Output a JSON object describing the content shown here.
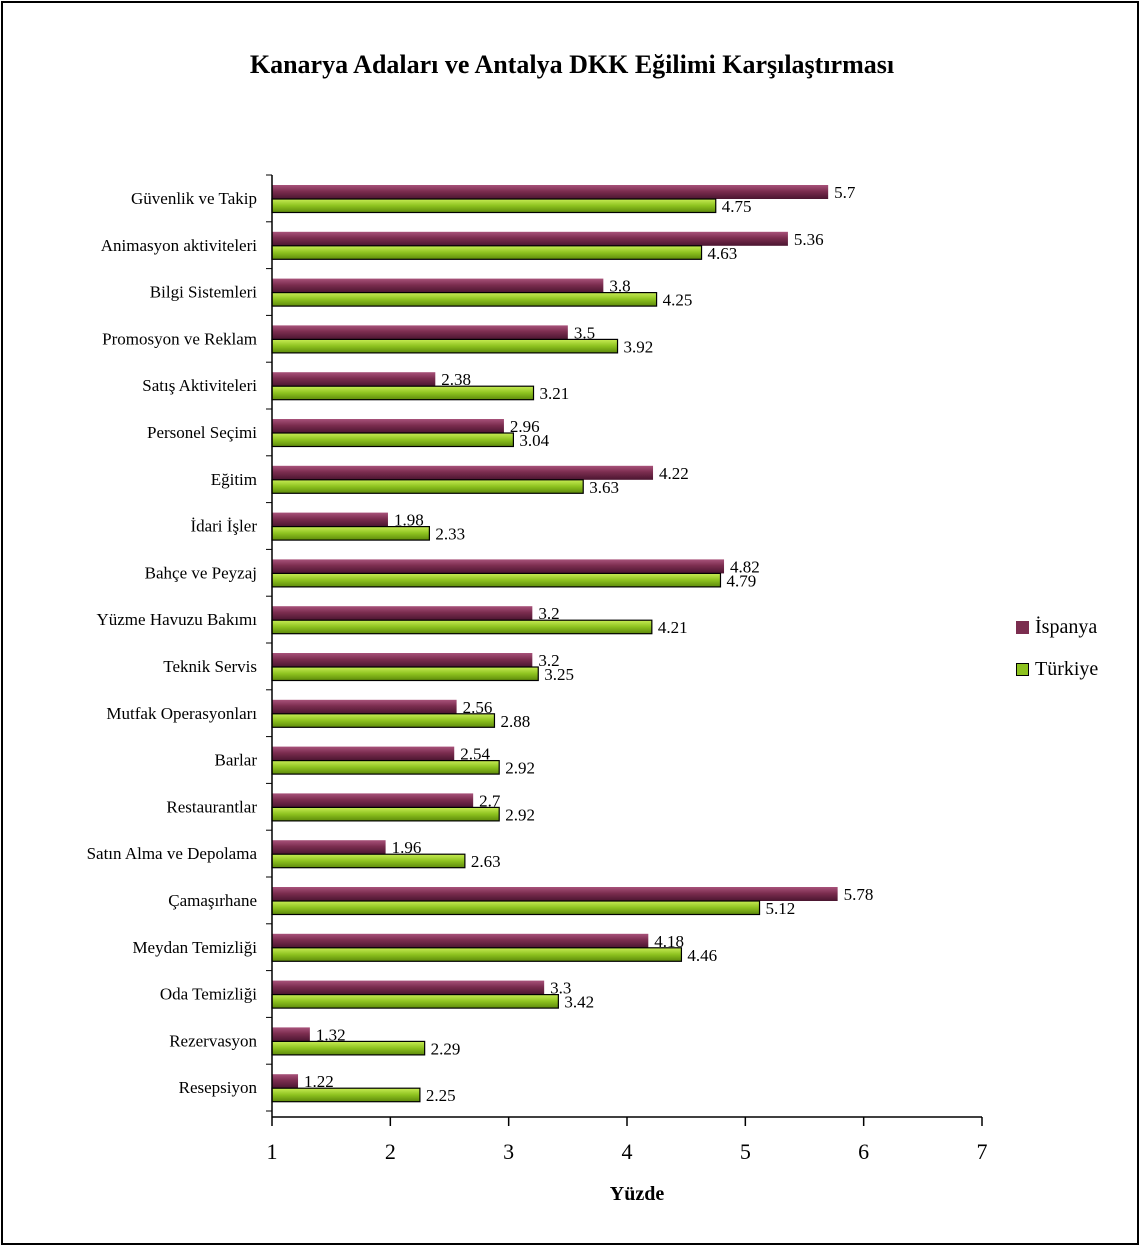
{
  "chart_data": {
    "type": "bar",
    "orientation": "horizontal",
    "title": "Kanarya Adaları ve Antalya DKK Eğilimi Karşılaştırması",
    "xlabel": "Yüzde",
    "ylabel": "",
    "xlim": [
      1,
      7
    ],
    "ticks": [
      "1",
      "2",
      "3",
      "4",
      "5",
      "6",
      "7"
    ],
    "grid": false,
    "legend_position": "right",
    "categories": [
      "Güvenlik ve Takip",
      "Animasyon aktiviteleri",
      "Bilgi Sistemleri",
      "Promosyon ve Reklam",
      "Satış Aktiviteleri",
      "Personel Seçimi",
      "Eğitim",
      "İdari İşler",
      "Bahçe ve Peyzaj",
      "Yüzme Havuzu Bakımı",
      "Teknik Servis",
      "Mutfak Operasyonları",
      "Barlar",
      "Restaurantlar",
      "Satın Alma ve Depolama",
      "Çamaşırhane",
      "Meydan Temizliği",
      "Oda Temizliği",
      "Rezervasyon",
      "Resepsiyon"
    ],
    "series": [
      {
        "name": "İspanya",
        "color": "#7b2d4f",
        "values": [
          5.7,
          5.36,
          3.8,
          3.5,
          2.38,
          2.96,
          4.22,
          1.98,
          4.82,
          3.2,
          3.2,
          2.56,
          2.54,
          2.7,
          1.96,
          5.78,
          4.18,
          3.3,
          1.32,
          1.22
        ],
        "labels": [
          "5.7",
          "5.36",
          "3.8",
          "3.5",
          "2.38",
          "2.96",
          "4.22",
          "1.98",
          "4.82",
          "3.2",
          "3.2",
          "2.56",
          "2.54",
          "2.7",
          "1.96",
          "5.78",
          "4.18",
          "3.3",
          "1.32",
          "1.22"
        ]
      },
      {
        "name": "Türkiye",
        "color": "#8dc21f",
        "values": [
          4.75,
          4.63,
          4.25,
          3.92,
          3.21,
          3.04,
          3.63,
          2.33,
          4.79,
          4.21,
          3.25,
          2.88,
          2.92,
          2.92,
          2.63,
          5.12,
          4.46,
          3.42,
          2.29,
          2.25
        ],
        "labels": [
          "4.75",
          "4.63",
          "4.25",
          "3.92",
          "3.21",
          "3.04",
          "3.63",
          "2.33",
          "4.79",
          "4.21",
          "3.25",
          "2.88",
          "2.92",
          "2.92",
          "2.63",
          "5.12",
          "4.46",
          "3.42",
          "2.29",
          "2.25"
        ]
      }
    ]
  }
}
